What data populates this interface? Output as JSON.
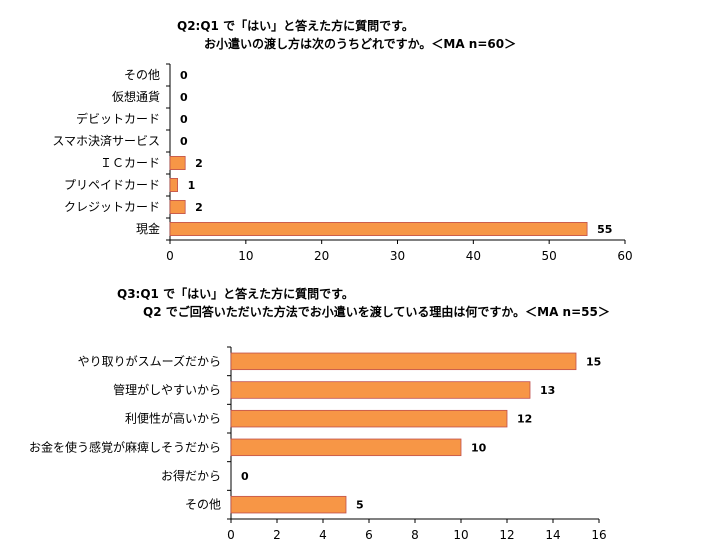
{
  "colors": {
    "bar_fill": "#F79646",
    "bar_stroke": "#C0504D",
    "axis": "#000000",
    "text": "#000000"
  },
  "chart_data": [
    {
      "type": "bar",
      "orientation": "horizontal",
      "title_lines": [
        "Q2:Q1 で「はい」と答えた方に質問です。",
        "お小遣いの渡し方は次のうちどれですか。＜MA n=60＞"
      ],
      "categories": [
        "その他",
        "仮想通貨",
        "デビットカード",
        "スマホ決済サービス",
        "ＩＣカード",
        "プリペイドカード",
        "クレジットカード",
        "現金"
      ],
      "values": [
        0,
        0,
        0,
        0,
        2,
        1,
        2,
        55
      ],
      "xlim": [
        0,
        60
      ],
      "x_ticks": [
        0,
        10,
        20,
        30,
        40,
        50,
        60
      ],
      "grid": false,
      "legend": "none"
    },
    {
      "type": "bar",
      "orientation": "horizontal",
      "title_lines": [
        "Q3:Q1 で「はい」と答えた方に質問です。",
        "Q2 でご回答いただいた方法でお小遣いを渡している理由は何ですか。＜MA n=55＞"
      ],
      "categories": [
        "やり取りがスムーズだから",
        "管理がしやすいから",
        "利便性が高いから",
        "お金を使う感覚が麻痺しそうだから",
        "お得だから",
        "その他"
      ],
      "values": [
        15,
        13,
        12,
        10,
        0,
        5
      ],
      "xlim": [
        0,
        16
      ],
      "x_ticks": [
        0,
        2,
        4,
        6,
        8,
        10,
        12,
        14,
        16
      ],
      "grid": false,
      "legend": "none"
    }
  ]
}
